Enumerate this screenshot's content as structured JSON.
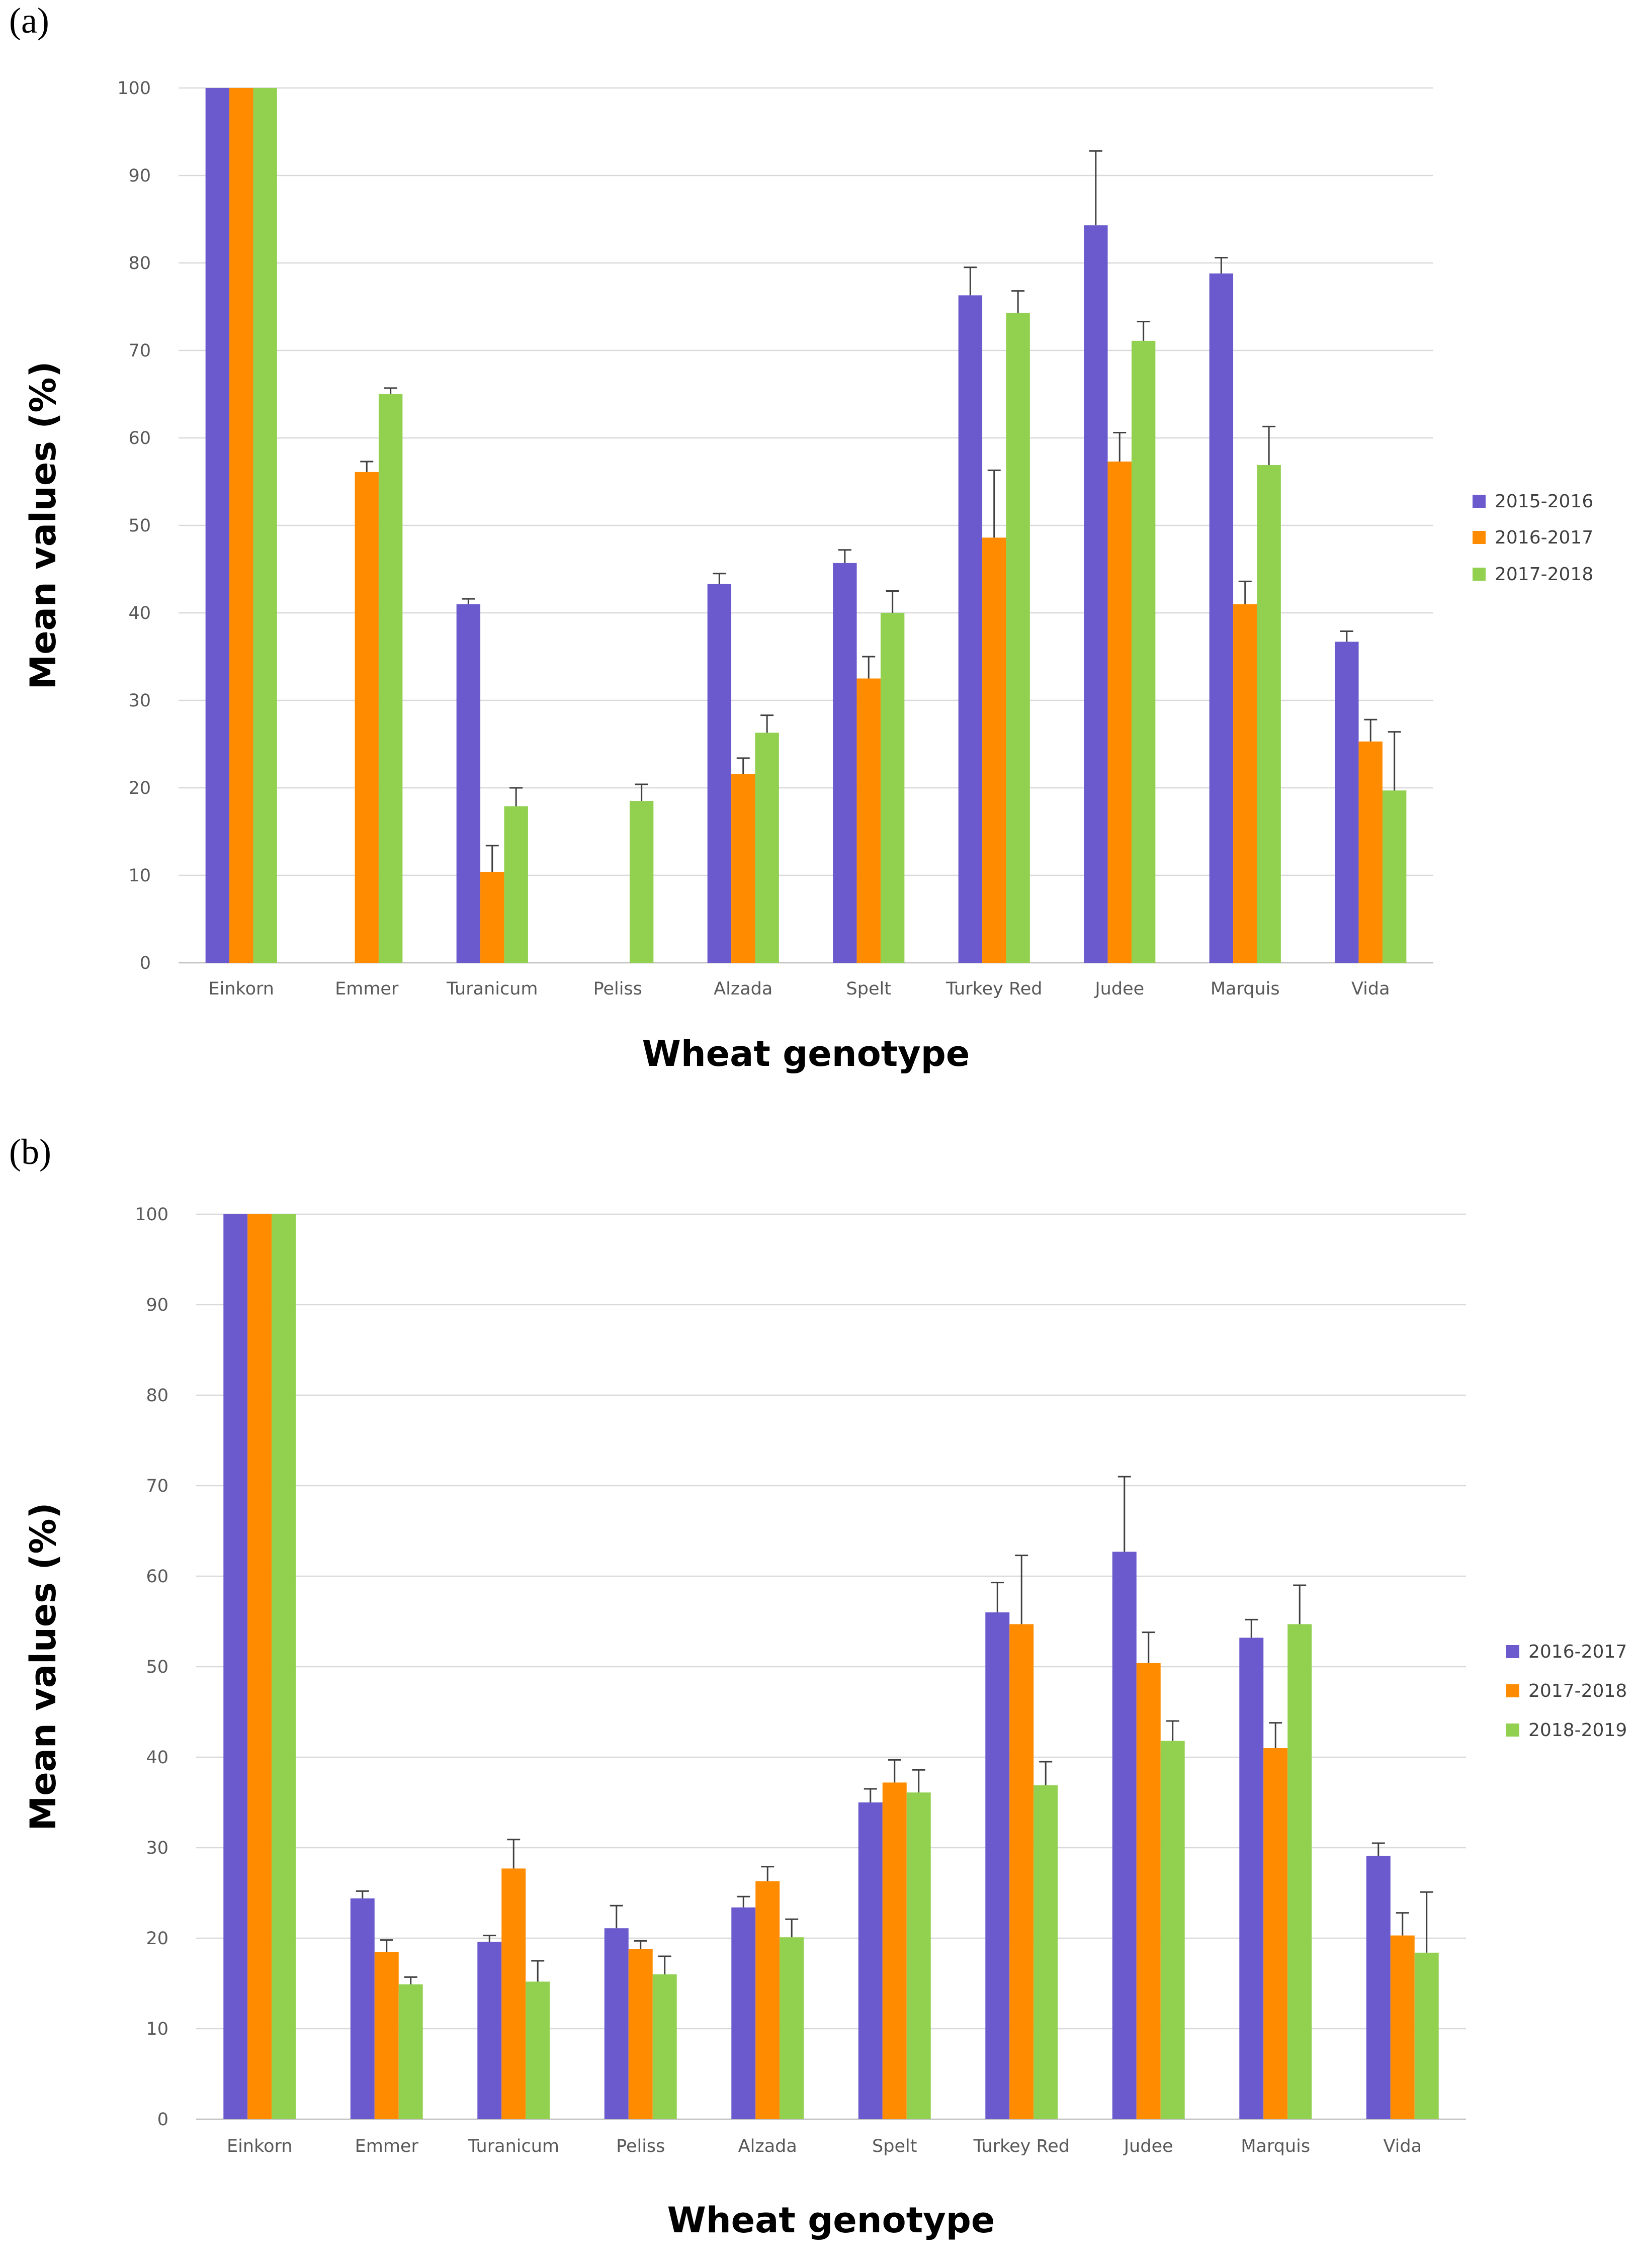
{
  "chart_data": [
    {
      "panel": "(a)",
      "type": "bar",
      "title": "",
      "xlabel": "Wheat genotype",
      "ylabel": "Mean values (%)",
      "ylim": [
        0,
        100
      ],
      "yticks": [
        0,
        10,
        20,
        30,
        40,
        50,
        60,
        70,
        80,
        90,
        100
      ],
      "grid": true,
      "legend_position": "right",
      "categories": [
        "Einkorn",
        "Emmer",
        "Turanicum",
        "Peliss",
        "Alzada",
        "Spelt",
        "Turkey Red",
        "Judee",
        "Marquis",
        "Vida"
      ],
      "series": [
        {
          "name": "2015-2016",
          "color": "#6a5acd",
          "values": [
            100,
            null,
            41,
            null,
            43.3,
            45.7,
            76.3,
            84.3,
            78.8,
            36.7
          ],
          "errors": [
            0,
            null,
            0.6,
            null,
            1.2,
            1.5,
            3.2,
            8.5,
            1.8,
            1.2
          ]
        },
        {
          "name": "2016-2017",
          "color": "#ff8c00",
          "values": [
            100,
            56.1,
            10.4,
            null,
            21.6,
            32.5,
            48.6,
            57.3,
            41,
            25.3
          ],
          "errors": [
            0,
            1.2,
            3,
            null,
            1.8,
            2.5,
            7.7,
            3.3,
            2.6,
            2.5
          ]
        },
        {
          "name": "2017-2018",
          "color": "#92d050",
          "values": [
            100,
            65,
            17.9,
            18.5,
            26.3,
            40,
            74.3,
            71.1,
            56.9,
            19.7
          ],
          "errors": [
            0,
            0.7,
            2.1,
            1.9,
            2,
            2.5,
            2.5,
            2.2,
            4.4,
            6.7
          ]
        }
      ]
    },
    {
      "panel": "(b)",
      "type": "bar",
      "title": "",
      "xlabel": "Wheat genotype",
      "ylabel": "Mean values (%)",
      "ylim": [
        0,
        100
      ],
      "yticks": [
        0,
        10,
        20,
        30,
        40,
        50,
        60,
        70,
        80,
        90,
        100
      ],
      "grid": true,
      "legend_position": "right",
      "categories": [
        "Einkorn",
        "Emmer",
        "Turanicum",
        "Peliss",
        "Alzada",
        "Spelt",
        "Turkey Red",
        "Judee",
        "Marquis",
        "Vida"
      ],
      "series": [
        {
          "name": "2016-2017",
          "color": "#6a5acd",
          "values": [
            100,
            24.4,
            19.6,
            21.1,
            23.4,
            35,
            56,
            62.7,
            53.2,
            29.1
          ],
          "errors": [
            0,
            0.8,
            0.7,
            2.5,
            1.2,
            1.5,
            3.3,
            8.3,
            2,
            1.4
          ]
        },
        {
          "name": "2017-2018",
          "color": "#ff8c00",
          "values": [
            100,
            18.5,
            27.7,
            18.8,
            26.3,
            37.2,
            54.7,
            50.4,
            41,
            20.3
          ],
          "errors": [
            0,
            1.3,
            3.2,
            0.9,
            1.6,
            2.5,
            7.6,
            3.4,
            2.8,
            2.5
          ]
        },
        {
          "name": "2018-2019",
          "color": "#92d050",
          "values": [
            100,
            14.9,
            15.2,
            16,
            20.1,
            36.1,
            36.9,
            41.8,
            54.7,
            18.4
          ],
          "errors": [
            0,
            0.8,
            2.3,
            2,
            2,
            2.5,
            2.6,
            2.2,
            4.3,
            6.7
          ]
        }
      ]
    }
  ]
}
